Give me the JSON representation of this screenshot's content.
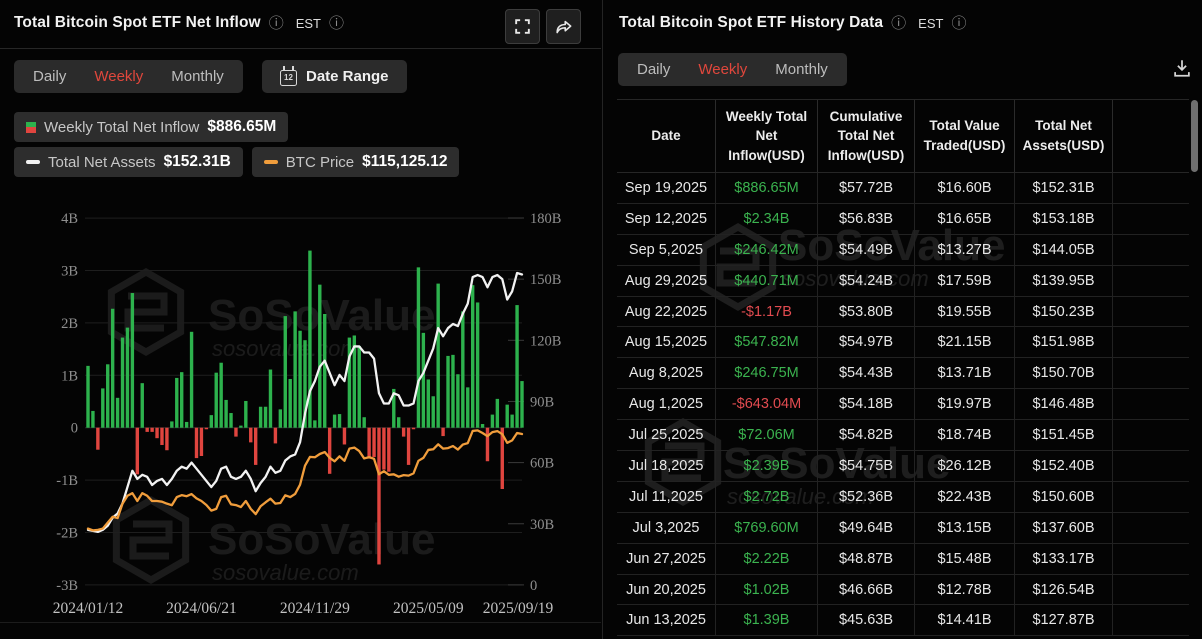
{
  "brand_watermark": {
    "name": "SoSoValue",
    "domain": "sosovalue.com"
  },
  "left_panel": {
    "title": "Total Bitcoin Spot ETF Net Inflow",
    "timezone_label": "EST",
    "tabs": [
      {
        "label": "Daily",
        "active": false
      },
      {
        "label": "Weekly",
        "active": true
      },
      {
        "label": "Monthly",
        "active": false
      }
    ],
    "date_range_label": "Date Range",
    "legend": [
      {
        "label": "Weekly Total Net Inflow",
        "value": "$886.65M"
      },
      {
        "label": "Total Net Assets",
        "value": "$152.31B"
      },
      {
        "label": "BTC Price",
        "value": "$115,125.12"
      }
    ],
    "chart_data": {
      "type": "bar",
      "subtype": "combo bar + 2 lines",
      "x_tick_labels": [
        "2024/01/12",
        "2024/06/21",
        "2024/11/29",
        "2025/05/09",
        "2025/09/19"
      ],
      "x_tick_indices": [
        0,
        23,
        46,
        69,
        88
      ],
      "left_axis": {
        "tick_labels": [
          "4B",
          "3B",
          "2B",
          "1B",
          "0",
          "-1B",
          "-2B",
          "-3B"
        ],
        "tick_values": [
          4,
          3,
          2,
          1,
          0,
          -1,
          -2,
          -3
        ],
        "range": [
          -3,
          4
        ],
        "unit": "USD billions"
      },
      "right_axis": {
        "tick_labels": [
          "180B",
          "150B",
          "120B",
          "90B",
          "60B",
          "30B",
          "0"
        ],
        "tick_values": [
          180,
          150,
          120,
          90,
          60,
          30,
          0
        ],
        "range": [
          0,
          180
        ],
        "unit": "USD billions"
      },
      "grid": true,
      "legend_position": "top-left",
      "series": [
        {
          "name": "Weekly Total Net Inflow",
          "type": "bar",
          "axis": "left",
          "unit": "billion USD",
          "color_positive": "#2db24d",
          "color_negative": "#e0453f",
          "values": [
            1.18,
            0.32,
            -0.42,
            0.75,
            1.21,
            2.27,
            0.57,
            1.72,
            1.91,
            2.57,
            -0.89,
            0.85,
            -0.08,
            -0.08,
            -0.2,
            -0.33,
            -0.43,
            0.12,
            0.95,
            1.06,
            0.11,
            1.83,
            -0.58,
            -0.54,
            -0.03,
            0.24,
            1.05,
            1.24,
            0.53,
            0.28,
            -0.17,
            0.04,
            0.51,
            -0.28,
            -0.71,
            0.4,
            0.4,
            1.11,
            -0.3,
            0.35,
            2.13,
            0.93,
            2.22,
            1.85,
            1.67,
            3.38,
            0.14,
            2.73,
            2.17,
            -0.88,
            0.25,
            0.26,
            -0.32,
            1.72,
            1.76,
            1.56,
            0.2,
            -0.59,
            -0.56,
            -2.61,
            -0.8,
            -0.84,
            0.74,
            0.2,
            -0.17,
            -0.71,
            -0.03,
            3.06,
            1.81,
            0.92,
            0.6,
            2.75,
            -0.16,
            1.37,
            1.39,
            1.02,
            2.22,
            0.77,
            2.72,
            2.39,
            0.07,
            -0.64,
            0.25,
            0.55,
            -1.17,
            0.44,
            0.25,
            2.34,
            0.89
          ]
        },
        {
          "name": "Total Net Assets",
          "type": "line",
          "axis": "right",
          "unit": "billion USD",
          "color": "#f2f2f2",
          "values": [
            27,
            26.5,
            26,
            27,
            29,
            33,
            35,
            40,
            48,
            56,
            52,
            54,
            53,
            49,
            51,
            52,
            49,
            52,
            56,
            58,
            57,
            60,
            57,
            54,
            51,
            48,
            51,
            57,
            58,
            53,
            52,
            53,
            56,
            52,
            46,
            50,
            53,
            58,
            55,
            56,
            61,
            63,
            64,
            70,
            84,
            95,
            100,
            107,
            110,
            104,
            98,
            103,
            100,
            112,
            117,
            117,
            114,
            114,
            111,
            94,
            89,
            89,
            94,
            93,
            88,
            88,
            89,
            100,
            104,
            110,
            116,
            126,
            122,
            126,
            128,
            127,
            133,
            138,
            151,
            152,
            151,
            146,
            151,
            152,
            150,
            140,
            144,
            153,
            152.3
          ]
        },
        {
          "name": "BTC Price",
          "type": "line",
          "axis": "hidden",
          "unit": "thousand USD",
          "axis_range": [
            0,
            280
          ],
          "color": "#f09d3c",
          "values": [
            43,
            41.6,
            42,
            43,
            47.5,
            52,
            51,
            62,
            68,
            70,
            64,
            70,
            68,
            64,
            64,
            63.5,
            62,
            60.8,
            67,
            68.5,
            67.7,
            69.3,
            66,
            64,
            61,
            56.7,
            58,
            67,
            68,
            61.5,
            60.9,
            59.4,
            64,
            58,
            54,
            60,
            63,
            65.8,
            62,
            62.5,
            68.4,
            67,
            69.4,
            76.5,
            91,
            97.7,
            97.4,
            99.9,
            101.4,
            97,
            94.3,
            98.1,
            94.7,
            104,
            104.8,
            102.1,
            96.5,
            97.5,
            96.2,
            84.4,
            86.8,
            84,
            84.4,
            82.6,
            83.8,
            83.4,
            85.1,
            94.7,
            96.9,
            103,
            103.5,
            107.3,
            104,
            104.4,
            106,
            103.3,
            107.1,
            108.2,
            117.5,
            117.9,
            115.9,
            113.5,
            116.6,
            117.4,
            115,
            108.4,
            110.3,
            115.9,
            115.125
          ]
        }
      ]
    }
  },
  "right_panel": {
    "title": "Total Bitcoin Spot ETF History Data",
    "timezone_label": "EST",
    "tabs": [
      {
        "label": "Daily",
        "active": false
      },
      {
        "label": "Weekly",
        "active": true
      },
      {
        "label": "Monthly",
        "active": false
      }
    ],
    "table": {
      "columns": [
        "Date",
        "Weekly Total Net Inflow(USD)",
        "Cumulative Total Net Inflow(USD)",
        "Total Value Traded(USD)",
        "Total Net Assets(USD)"
      ],
      "rows": [
        {
          "date": "Sep 19,2025",
          "weekly_net_inflow": "$886.65M",
          "cumulative_net_inflow": "$57.72B",
          "total_value_traded": "$16.60B",
          "total_net_assets": "$152.31B"
        },
        {
          "date": "Sep 12,2025",
          "weekly_net_inflow": "$2.34B",
          "cumulative_net_inflow": "$56.83B",
          "total_value_traded": "$16.65B",
          "total_net_assets": "$153.18B"
        },
        {
          "date": "Sep 5,2025",
          "weekly_net_inflow": "$246.42M",
          "cumulative_net_inflow": "$54.49B",
          "total_value_traded": "$13.27B",
          "total_net_assets": "$144.05B"
        },
        {
          "date": "Aug 29,2025",
          "weekly_net_inflow": "$440.71M",
          "cumulative_net_inflow": "$54.24B",
          "total_value_traded": "$17.59B",
          "total_net_assets": "$139.95B"
        },
        {
          "date": "Aug 22,2025",
          "weekly_net_inflow": "-$1.17B",
          "cumulative_net_inflow": "$53.80B",
          "total_value_traded": "$19.55B",
          "total_net_assets": "$150.23B"
        },
        {
          "date": "Aug 15,2025",
          "weekly_net_inflow": "$547.82M",
          "cumulative_net_inflow": "$54.97B",
          "total_value_traded": "$21.15B",
          "total_net_assets": "$151.98B"
        },
        {
          "date": "Aug 8,2025",
          "weekly_net_inflow": "$246.75M",
          "cumulative_net_inflow": "$54.43B",
          "total_value_traded": "$13.71B",
          "total_net_assets": "$150.70B"
        },
        {
          "date": "Aug 1,2025",
          "weekly_net_inflow": "-$643.04M",
          "cumulative_net_inflow": "$54.18B",
          "total_value_traded": "$19.97B",
          "total_net_assets": "$146.48B"
        },
        {
          "date": "Jul 25,2025",
          "weekly_net_inflow": "$72.06M",
          "cumulative_net_inflow": "$54.82B",
          "total_value_traded": "$18.74B",
          "total_net_assets": "$151.45B"
        },
        {
          "date": "Jul 18,2025",
          "weekly_net_inflow": "$2.39B",
          "cumulative_net_inflow": "$54.75B",
          "total_value_traded": "$26.12B",
          "total_net_assets": "$152.40B"
        },
        {
          "date": "Jul 11,2025",
          "weekly_net_inflow": "$2.72B",
          "cumulative_net_inflow": "$52.36B",
          "total_value_traded": "$22.43B",
          "total_net_assets": "$150.60B"
        },
        {
          "date": "Jul 3,2025",
          "weekly_net_inflow": "$769.60M",
          "cumulative_net_inflow": "$49.64B",
          "total_value_traded": "$13.15B",
          "total_net_assets": "$137.60B"
        },
        {
          "date": "Jun 27,2025",
          "weekly_net_inflow": "$2.22B",
          "cumulative_net_inflow": "$48.87B",
          "total_value_traded": "$15.48B",
          "total_net_assets": "$133.17B"
        },
        {
          "date": "Jun 20,2025",
          "weekly_net_inflow": "$1.02B",
          "cumulative_net_inflow": "$46.66B",
          "total_value_traded": "$12.78B",
          "total_net_assets": "$126.54B"
        },
        {
          "date": "Jun 13,2025",
          "weekly_net_inflow": "$1.39B",
          "cumulative_net_inflow": "$45.63B",
          "total_value_traded": "$14.41B",
          "total_net_assets": "$127.87B"
        }
      ]
    }
  },
  "colors": {
    "tab_active": "#e0473c",
    "positive": "#3bb34f",
    "negative": "#e14b50",
    "bar_positive": "#2db24d",
    "bar_negative": "#e0453f",
    "assets_line": "#f2f2f2",
    "btc_line": "#f09d3c"
  }
}
